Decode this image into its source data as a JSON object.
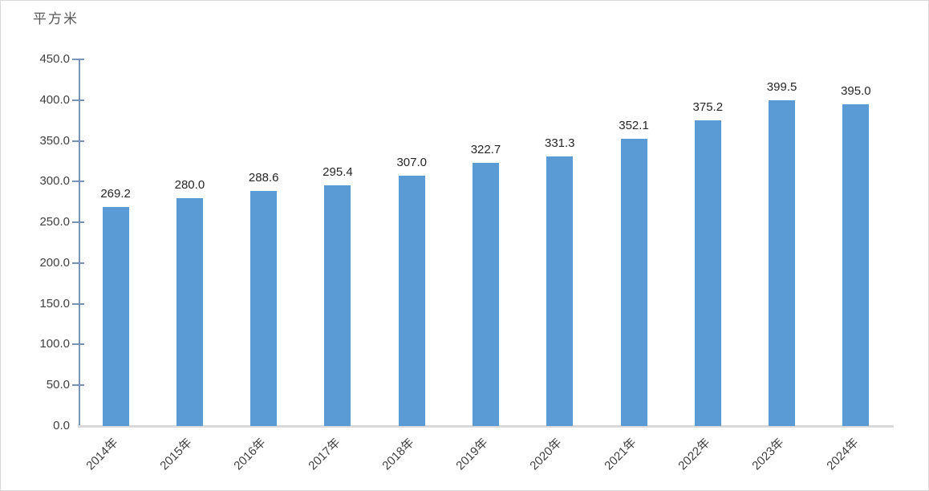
{
  "chart_data": {
    "type": "bar",
    "title": "平方米",
    "categories": [
      "2014年",
      "2015年",
      "2016年",
      "2017年",
      "2018年",
      "2019年",
      "2020年",
      "2021年",
      "2022年",
      "2023年",
      "2024年"
    ],
    "values": [
      269.2,
      280.0,
      288.6,
      295.4,
      307.0,
      322.7,
      331.3,
      352.1,
      375.2,
      399.5,
      395.0
    ],
    "data_labels": [
      "269.2",
      "280.0",
      "288.6",
      "295.4",
      "307.0",
      "322.7",
      "331.3",
      "352.1",
      "375.2",
      "399.5",
      "395.0"
    ],
    "xlabel": "",
    "ylabel": "平方米",
    "ylim": [
      0,
      450
    ],
    "ytick_step": 50,
    "ytick_labels": [
      "0.0",
      "50.0",
      "100.0",
      "150.0",
      "200.0",
      "250.0",
      "300.0",
      "350.0",
      "400.0",
      "450.0"
    ],
    "grid": false,
    "legend": null,
    "colors": {
      "bar": "#5b9bd5",
      "y_axis": "#7a94b8",
      "x_axis_line": "#d9d9d9",
      "data_label_text": "#262626",
      "tick_label_text": "#404040",
      "title_text": "#595959",
      "frame_border": "#d9d9d9",
      "background": "#ffffff"
    }
  }
}
